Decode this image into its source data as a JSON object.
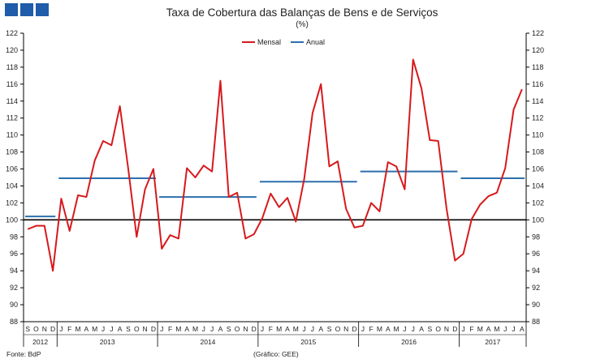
{
  "header": {
    "logo_color": "#1f5ca9",
    "title": "Taxa de Cobertura das Balanças de Bens e de Serviços",
    "subtitle": "(%)"
  },
  "footer": {
    "source": "Fonte: BdP",
    "credit": "(Gráfico: GEE)"
  },
  "chart_data": {
    "type": "line",
    "title": "Taxa de Cobertura das Balanças de Bens e de Serviços",
    "subtitle": "(%)",
    "ylim": [
      88,
      122
    ],
    "y_ticks": [
      88,
      90,
      92,
      94,
      96,
      98,
      100,
      102,
      104,
      106,
      108,
      110,
      112,
      114,
      116,
      118,
      120,
      122
    ],
    "reference_line": 100,
    "legend_position": "top-center",
    "month_labels": [
      "S",
      "O",
      "N",
      "D",
      "J",
      "F",
      "M",
      "A",
      "M",
      "J",
      "J",
      "A",
      "S",
      "O",
      "N",
      "D",
      "J",
      "F",
      "M",
      "A",
      "M",
      "J",
      "J",
      "A",
      "S",
      "O",
      "N",
      "D",
      "J",
      "F",
      "M",
      "A",
      "M",
      "J",
      "J",
      "A",
      "S",
      "O",
      "N",
      "D",
      "J",
      "F",
      "M",
      "A",
      "M",
      "J",
      "J",
      "A",
      "S",
      "O",
      "N",
      "D",
      "J",
      "F",
      "M",
      "A",
      "M",
      "J",
      "J",
      "A"
    ],
    "year_groups": [
      {
        "label": "2012",
        "months": 4
      },
      {
        "label": "2013",
        "months": 12
      },
      {
        "label": "2014",
        "months": 12
      },
      {
        "label": "2015",
        "months": 12
      },
      {
        "label": "2016",
        "months": 12
      },
      {
        "label": "2017",
        "months": 8
      }
    ],
    "series": [
      {
        "name": "Mensal",
        "color": "#d7191c",
        "values": [
          98.9,
          99.3,
          99.3,
          94.0,
          102.5,
          98.7,
          102.9,
          102.7,
          107.0,
          109.3,
          108.8,
          113.4,
          106.0,
          98.0,
          103.6,
          106.0,
          96.6,
          98.2,
          97.8,
          106.1,
          105.0,
          106.4,
          105.7,
          116.4,
          102.7,
          103.2,
          97.8,
          98.3,
          100.2,
          103.1,
          101.5,
          102.6,
          99.8,
          104.8,
          112.6,
          116.0,
          106.3,
          106.9,
          101.3,
          99.1,
          99.3,
          102.0,
          101.0,
          106.8,
          106.3,
          103.6,
          118.9,
          115.5,
          109.4,
          109.3,
          101.3,
          95.2,
          96.0,
          100.1,
          101.8,
          102.8,
          103.2,
          106.1,
          113.0,
          115.4
        ]
      },
      {
        "name": "Anual",
        "color": "#2b6fae",
        "segments": [
          {
            "year": "2012",
            "value": 100.4
          },
          {
            "year": "2013",
            "value": 104.9
          },
          {
            "year": "2014",
            "value": 102.7
          },
          {
            "year": "2015",
            "value": 104.5
          },
          {
            "year": "2016",
            "value": 105.7
          },
          {
            "year": "2017",
            "value": 104.9
          }
        ]
      }
    ]
  }
}
